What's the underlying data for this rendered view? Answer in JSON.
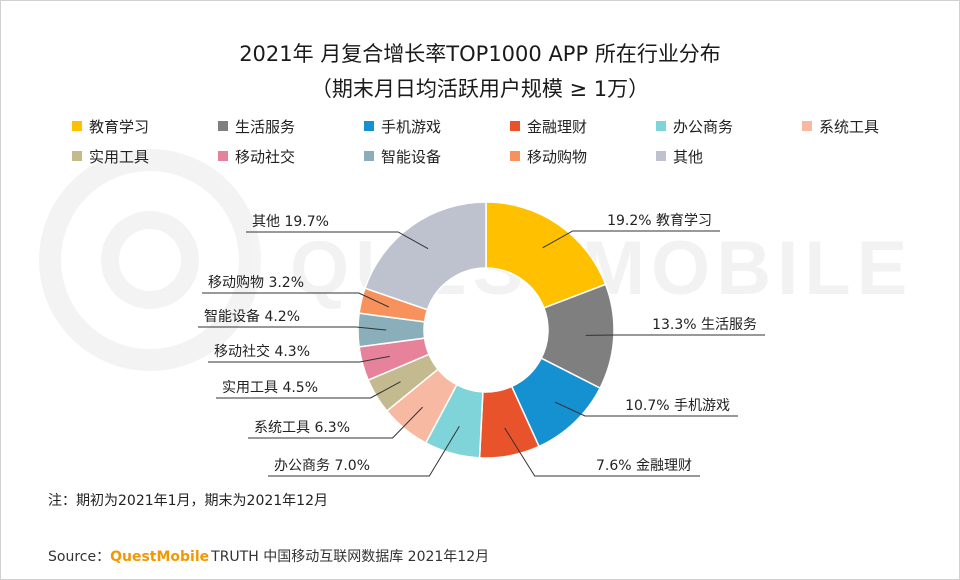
{
  "title": "2021年 月复合增长率TOP1000 APP 所在行业分布",
  "subtitle": "（期末月日均活跃用户规模 ≥ 1万）",
  "watermark": "QUESTMOBILE",
  "note": "注：期初为2021年1月，期末为2021年12月",
  "source": {
    "label": "Source：",
    "brand": "QuestMobile",
    "rest": "TRUTH 中国移动互联网数据库 2021年12月"
  },
  "chart_data": {
    "type": "pie",
    "donut": true,
    "title": "2021年 月复合增长率TOP1000 APP 所在行业分布",
    "unit": "%",
    "legend_position": "top",
    "slices": [
      {
        "name": "教育学习",
        "value": 19.2,
        "label": "19.2%",
        "color": "#FFC000"
      },
      {
        "name": "生活服务",
        "value": 13.3,
        "label": "13.3%",
        "color": "#7F7F7F"
      },
      {
        "name": "手机游戏",
        "value": 10.7,
        "label": "10.7%",
        "color": "#1591D2"
      },
      {
        "name": "金融理财",
        "value": 7.6,
        "label": "7.6%",
        "color": "#E8532B"
      },
      {
        "name": "办公商务",
        "value": 7.0,
        "label": "7.0%",
        "color": "#7ED4D8"
      },
      {
        "name": "系统工具",
        "value": 6.3,
        "label": "6.3%",
        "color": "#F8B9A2"
      },
      {
        "name": "实用工具",
        "value": 4.5,
        "label": "4.5%",
        "color": "#C4BA8F"
      },
      {
        "name": "移动社交",
        "value": 4.3,
        "label": "4.3%",
        "color": "#E6839A"
      },
      {
        "name": "智能设备",
        "value": 4.2,
        "label": "4.2%",
        "color": "#8BAEBB"
      },
      {
        "name": "移动购物",
        "value": 3.2,
        "label": "3.2%",
        "color": "#F7925D"
      },
      {
        "name": "其他",
        "value": 19.7,
        "label": "19.7%",
        "color": "#BDC2CE"
      }
    ]
  }
}
